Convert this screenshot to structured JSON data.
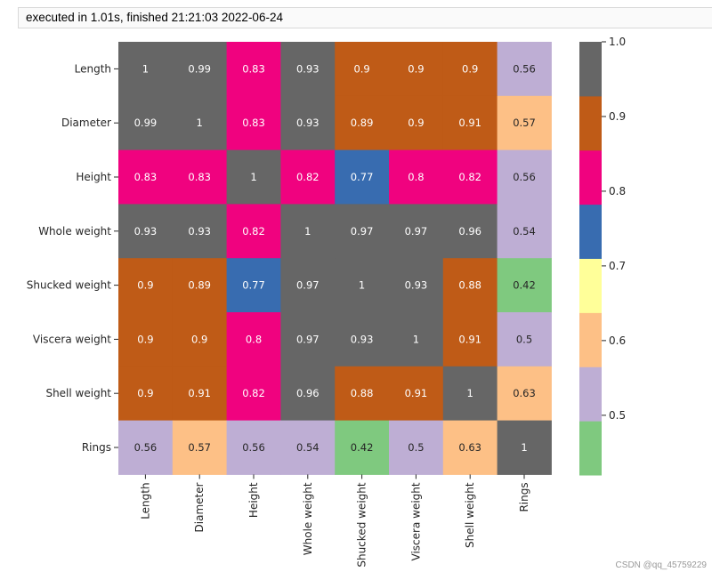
{
  "output": {
    "exec_status": "executed in 1.01s, finished 21:21:03 2022-06-24"
  },
  "watermark": "CSDN @qq_45759229",
  "chart_data": {
    "type": "heatmap",
    "title": "",
    "xlabel": "",
    "ylabel": "",
    "row_labels": [
      "Length",
      "Diameter",
      "Height",
      "Whole weight",
      "Shucked weight",
      "Viscera weight",
      "Shell weight",
      "Rings"
    ],
    "col_labels": [
      "Length",
      "Diameter",
      "Height",
      "Whole weight",
      "Shucked weight",
      "Viscera weight",
      "Shell weight",
      "Rings"
    ],
    "values": [
      [
        1,
        0.99,
        0.83,
        0.93,
        0.9,
        0.9,
        0.9,
        0.56
      ],
      [
        0.99,
        1,
        0.83,
        0.93,
        0.89,
        0.9,
        0.91,
        0.57
      ],
      [
        0.83,
        0.83,
        1,
        0.82,
        0.77,
        0.8,
        0.82,
        0.56
      ],
      [
        0.93,
        0.93,
        0.82,
        1,
        0.97,
        0.97,
        0.96,
        0.54
      ],
      [
        0.9,
        0.89,
        0.77,
        0.97,
        1,
        0.93,
        0.88,
        0.42
      ],
      [
        0.9,
        0.9,
        0.8,
        0.97,
        0.93,
        1,
        0.91,
        0.5
      ],
      [
        0.9,
        0.91,
        0.82,
        0.96,
        0.88,
        0.91,
        1,
        0.63
      ],
      [
        0.56,
        0.57,
        0.56,
        0.54,
        0.42,
        0.5,
        0.63,
        1
      ]
    ],
    "annot": true,
    "colormap": "Accent",
    "vmin": 0.42,
    "vmax": 1.0,
    "colorbar": {
      "ticks": [
        1.0,
        0.9,
        0.8,
        0.7,
        0.6,
        0.5
      ],
      "tick_labels": [
        "1.0",
        "0.9",
        "0.8",
        "0.7",
        "0.6",
        "0.5"
      ],
      "colors_bottom_to_top": [
        "#7fc97f",
        "#beaed4",
        "#fdc086",
        "#ffff99",
        "#386cb0",
        "#f0027f",
        "#bf5b17",
        "#666666"
      ]
    }
  }
}
